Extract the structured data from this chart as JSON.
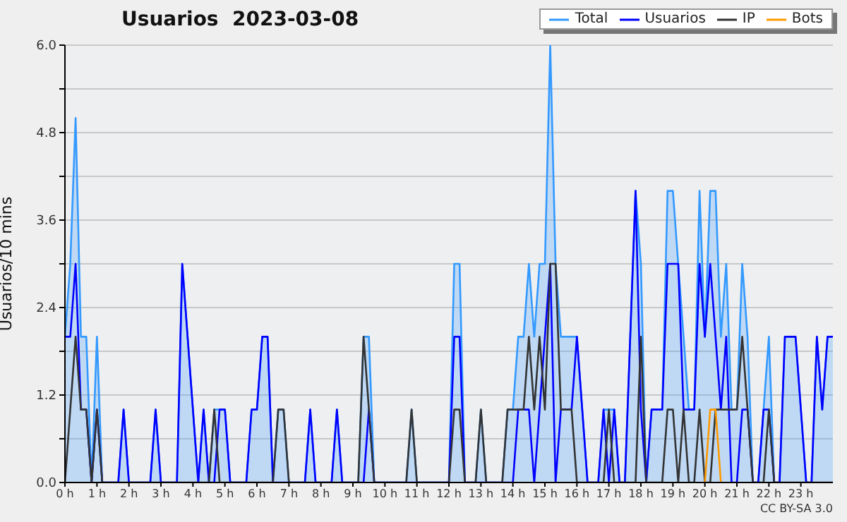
{
  "chart_data": {
    "type": "line",
    "title": "Usuarios  2023-03-08",
    "ylabel": "Usuarios/10 mins",
    "annotations": [
      "CC BY-SA 3.0"
    ],
    "x": [
      0,
      0.1667,
      0.3333,
      0.5,
      0.6667,
      0.8333,
      1,
      1.1667,
      1.3333,
      1.5,
      1.6667,
      1.8333,
      2,
      2.1667,
      2.3333,
      2.5,
      2.6667,
      2.8333,
      3,
      3.1667,
      3.3333,
      3.5,
      3.6667,
      3.8333,
      4,
      4.1667,
      4.3333,
      4.5,
      4.6667,
      4.8333,
      5,
      5.1667,
      5.3333,
      5.5,
      5.6667,
      5.8333,
      6,
      6.1667,
      6.3333,
      6.5,
      6.6667,
      6.8333,
      7,
      7.1667,
      7.3333,
      7.5,
      7.6667,
      7.8333,
      8,
      8.1667,
      8.3333,
      8.5,
      8.6667,
      8.8333,
      9,
      9.1667,
      9.3333,
      9.5,
      9.6667,
      9.8333,
      10,
      10.1667,
      10.3333,
      10.5,
      10.6667,
      10.8333,
      11,
      11.1667,
      11.3333,
      11.5,
      11.6667,
      11.8333,
      12,
      12.1667,
      12.3333,
      12.5,
      12.6667,
      12.8333,
      13,
      13.1667,
      13.3333,
      13.5,
      13.6667,
      13.8333,
      14,
      14.1667,
      14.3333,
      14.5,
      14.6667,
      14.8333,
      15,
      15.1667,
      15.3333,
      15.5,
      15.6667,
      15.8333,
      16,
      16.1667,
      16.3333,
      16.5,
      16.6667,
      16.8333,
      17,
      17.1667,
      17.3333,
      17.5,
      17.6667,
      17.8333,
      18,
      18.1667,
      18.3333,
      18.5,
      18.6667,
      18.8333,
      19,
      19.1667,
      19.3333,
      19.5,
      19.6667,
      19.8333,
      20,
      20.1667,
      20.3333,
      20.5,
      20.6667,
      20.8333,
      21,
      21.1667,
      21.3333,
      21.5,
      21.6667,
      21.8333,
      22,
      22.1667,
      22.3333,
      22.5,
      22.6667,
      22.8333,
      23,
      23.1667,
      23.3333,
      23.5,
      23.6667,
      23.8333,
      24
    ],
    "series": [
      {
        "name": "Total",
        "type": "area",
        "color": "#3399ff",
        "values": [
          2,
          3,
          5,
          2,
          2,
          0,
          2,
          0,
          0,
          0,
          0,
          1,
          0,
          0,
          0,
          0,
          0,
          1,
          0,
          0,
          0,
          0,
          3,
          2,
          1,
          0,
          1,
          0,
          1,
          1,
          1,
          0,
          0,
          0,
          0,
          1,
          1,
          2,
          2,
          0,
          1,
          1,
          0,
          0,
          0,
          0,
          1,
          0,
          0,
          0,
          0,
          1,
          0,
          0,
          0,
          0,
          2,
          2,
          0,
          0,
          0,
          0,
          0,
          0,
          0,
          1,
          0,
          0,
          0,
          0,
          0,
          0,
          0,
          3,
          3,
          0,
          0,
          0,
          1,
          0,
          0,
          0,
          0,
          1,
          1,
          2,
          2,
          3,
          2,
          3,
          3,
          6,
          3,
          2,
          2,
          2,
          2,
          1,
          0,
          0,
          0,
          1,
          1,
          1,
          0,
          0,
          2,
          4,
          3,
          0,
          1,
          1,
          1,
          4,
          4,
          3,
          2,
          1,
          1,
          4,
          2,
          4,
          4,
          2,
          3,
          1,
          1,
          3,
          2,
          0,
          0,
          1,
          2,
          0,
          0,
          2,
          2,
          2,
          1,
          0,
          0,
          2,
          1,
          2,
          2
        ]
      },
      {
        "name": "Usuarios",
        "color": "#0000ff",
        "values": [
          2,
          2,
          3,
          1,
          1,
          0,
          1,
          0,
          0,
          0,
          0,
          1,
          0,
          0,
          0,
          0,
          0,
          1,
          0,
          0,
          0,
          0,
          3,
          2,
          1,
          0,
          1,
          0,
          0,
          1,
          1,
          0,
          0,
          0,
          0,
          1,
          1,
          2,
          2,
          0,
          0,
          0,
          0,
          0,
          0,
          0,
          1,
          0,
          0,
          0,
          0,
          1,
          0,
          0,
          0,
          0,
          0,
          1,
          0,
          0,
          0,
          0,
          0,
          0,
          0,
          0,
          0,
          0,
          0,
          0,
          0,
          0,
          0,
          2,
          2,
          0,
          0,
          0,
          0,
          0,
          0,
          0,
          0,
          0,
          0,
          1,
          1,
          1,
          0,
          1,
          2,
          3,
          0,
          1,
          1,
          1,
          2,
          1,
          0,
          0,
          0,
          1,
          0,
          1,
          0,
          0,
          2,
          4,
          1,
          0,
          1,
          1,
          1,
          3,
          3,
          3,
          1,
          1,
          1,
          3,
          2,
          3,
          2,
          1,
          2,
          0,
          0,
          1,
          1,
          0,
          0,
          1,
          1,
          0,
          0,
          2,
          2,
          2,
          1,
          0,
          0,
          2,
          1,
          2,
          2
        ]
      },
      {
        "name": "IP",
        "color": "#333333",
        "values": [
          0,
          1,
          2,
          1,
          1,
          0,
          1,
          0,
          0,
          0,
          0,
          0,
          0,
          0,
          0,
          0,
          0,
          0,
          0,
          0,
          0,
          0,
          0,
          0,
          0,
          0,
          0,
          0,
          1,
          0,
          0,
          0,
          0,
          0,
          0,
          0,
          0,
          0,
          0,
          0,
          1,
          1,
          0,
          0,
          0,
          0,
          0,
          0,
          0,
          0,
          0,
          0,
          0,
          0,
          0,
          0,
          2,
          1,
          0,
          0,
          0,
          0,
          0,
          0,
          0,
          1,
          0,
          0,
          0,
          0,
          0,
          0,
          0,
          1,
          1,
          0,
          0,
          0,
          1,
          0,
          0,
          0,
          0,
          1,
          1,
          1,
          1,
          2,
          1,
          2,
          1,
          3,
          3,
          1,
          1,
          1,
          0,
          0,
          0,
          0,
          0,
          0,
          1,
          0,
          0,
          0,
          0,
          0,
          2,
          0,
          0,
          0,
          0,
          1,
          1,
          0,
          1,
          0,
          0,
          1,
          0,
          0,
          1,
          1,
          1,
          1,
          1,
          2,
          1,
          0,
          0,
          0,
          1,
          0,
          0,
          0,
          0,
          0,
          0,
          0,
          0,
          0,
          0,
          0,
          0
        ]
      },
      {
        "name": "Bots",
        "color": "#ff9900",
        "values": [
          null,
          null,
          null,
          null,
          null,
          null,
          null,
          null,
          null,
          null,
          null,
          null,
          null,
          null,
          null,
          null,
          null,
          null,
          null,
          null,
          null,
          null,
          null,
          null,
          null,
          null,
          null,
          null,
          null,
          null,
          null,
          null,
          null,
          null,
          null,
          null,
          null,
          null,
          null,
          null,
          null,
          null,
          null,
          null,
          null,
          null,
          null,
          null,
          null,
          null,
          null,
          null,
          null,
          null,
          null,
          null,
          null,
          null,
          null,
          null,
          null,
          null,
          null,
          null,
          null,
          null,
          null,
          null,
          null,
          null,
          null,
          null,
          null,
          null,
          null,
          null,
          null,
          null,
          null,
          null,
          null,
          null,
          null,
          null,
          null,
          null,
          null,
          null,
          null,
          null,
          null,
          null,
          null,
          null,
          null,
          null,
          null,
          null,
          null,
          null,
          null,
          null,
          null,
          null,
          null,
          null,
          null,
          null,
          null,
          null,
          null,
          null,
          null,
          null,
          null,
          null,
          null,
          null,
          null,
          null,
          0,
          1,
          1,
          0,
          null,
          null,
          null,
          null,
          null,
          null,
          null,
          null,
          null,
          null,
          null,
          null,
          null,
          null,
          null,
          null,
          null,
          null,
          null,
          null,
          null
        ]
      }
    ],
    "xlim": [
      0,
      24
    ],
    "xticks": [
      {
        "value": 0,
        "label": "0 h"
      },
      {
        "value": 1,
        "label": "1 h"
      },
      {
        "value": 2,
        "label": "2 h"
      },
      {
        "value": 3,
        "label": "3 h"
      },
      {
        "value": 4,
        "label": "4 h"
      },
      {
        "value": 5,
        "label": "5 h"
      },
      {
        "value": 6,
        "label": "6 h"
      },
      {
        "value": 7,
        "label": "7 h"
      },
      {
        "value": 8,
        "label": "8 h"
      },
      {
        "value": 9,
        "label": "9 h"
      },
      {
        "value": 10,
        "label": "10 h"
      },
      {
        "value": 11,
        "label": "11 h"
      },
      {
        "value": 12,
        "label": "12 h"
      },
      {
        "value": 13,
        "label": "13 h"
      },
      {
        "value": 14,
        "label": "14 h"
      },
      {
        "value": 15,
        "label": "15 h"
      },
      {
        "value": 16,
        "label": "16 h"
      },
      {
        "value": 17,
        "label": "17 h"
      },
      {
        "value": 18,
        "label": "18 h"
      },
      {
        "value": 19,
        "label": "19 h"
      },
      {
        "value": 20,
        "label": "20 h"
      },
      {
        "value": 21,
        "label": "21 h"
      },
      {
        "value": 22,
        "label": "22 h"
      },
      {
        "value": 23,
        "label": "23 h"
      }
    ],
    "ylim": [
      0,
      6
    ],
    "yticks": [
      {
        "value": 0,
        "label": "0.0"
      },
      {
        "value": 0.6,
        "label": null
      },
      {
        "value": 1.2,
        "label": "1.2"
      },
      {
        "value": 1.8,
        "label": null
      },
      {
        "value": 2.4,
        "label": "2.4"
      },
      {
        "value": 3,
        "label": null
      },
      {
        "value": 3.6,
        "label": "3.6"
      },
      {
        "value": 4.2,
        "label": null
      },
      {
        "value": 4.8,
        "label": "4.8"
      },
      {
        "value": 5.4,
        "label": null
      },
      {
        "value": 6,
        "label": "6.0"
      }
    ],
    "grid": "y",
    "legend": "top right"
  }
}
